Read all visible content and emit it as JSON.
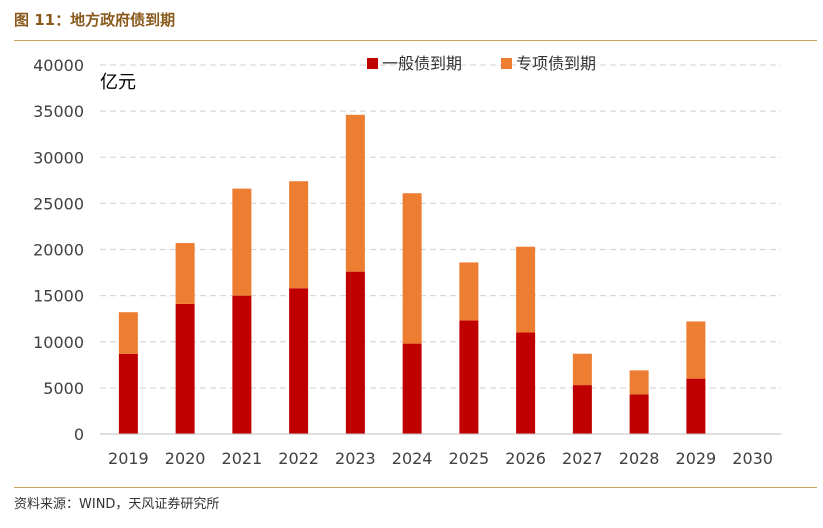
{
  "figure": {
    "title": "图 11：地方政府债到期",
    "source": "资料来源：WIND，天风证券研究所"
  },
  "chart_data": {
    "type": "bar",
    "stacked": true,
    "unit_label": "亿元",
    "categories": [
      "2019",
      "2020",
      "2021",
      "2022",
      "2023",
      "2024",
      "2025",
      "2026",
      "2027",
      "2028",
      "2029",
      "2030"
    ],
    "series": [
      {
        "name": "一般债到期",
        "color": "#c00000",
        "values": [
          8700,
          14100,
          15000,
          15800,
          17600,
          9800,
          12300,
          11000,
          5300,
          4300,
          6000,
          0
        ]
      },
      {
        "name": "专项债到期",
        "color": "#ed7d31",
        "values": [
          4500,
          6600,
          11600,
          11600,
          17000,
          16300,
          6300,
          9300,
          3400,
          2600,
          6200,
          0
        ]
      }
    ],
    "ylim": [
      0,
      40000
    ],
    "yticks": [
      0,
      5000,
      10000,
      15000,
      20000,
      25000,
      30000,
      35000,
      40000
    ],
    "grid": true,
    "legend_position": "top"
  }
}
